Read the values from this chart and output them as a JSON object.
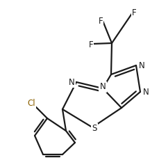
{
  "background_color": "#ffffff",
  "line_color": "#1a1a1a",
  "N_color": "#1a1a1a",
  "S_color": "#1a1a1a",
  "Cl_color": "#8B6000",
  "F_color": "#1a1a1a",
  "line_width": 1.6,
  "font_size": 8.5,
  "fig_width": 2.3,
  "fig_height": 2.4,
  "dpi": 100,
  "xlim": [
    0,
    230
  ],
  "ylim": [
    0,
    240
  ]
}
